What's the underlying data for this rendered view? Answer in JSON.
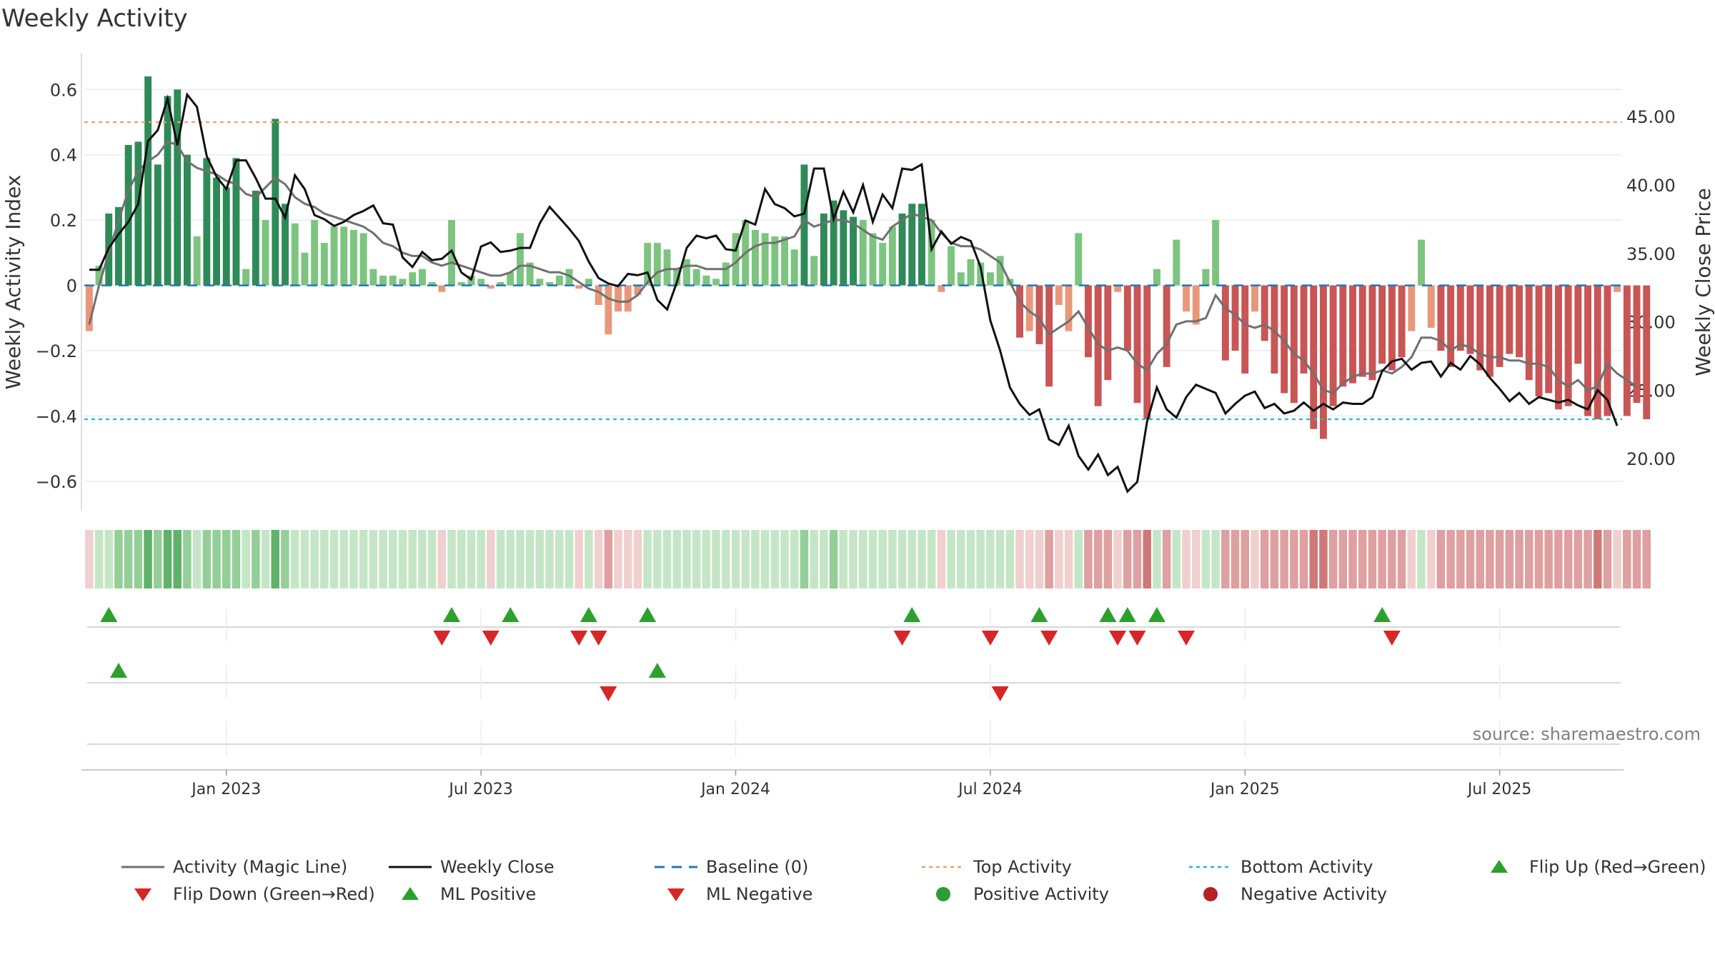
{
  "title": "Weekly Activity",
  "source_note": "source: sharemaestro.com",
  "colors": {
    "pos_dark": "#2e8b57",
    "pos_light": "#7cc47f",
    "neg_dark": "#c95555",
    "neg_light": "#e8977a",
    "magic_line": "#707070",
    "close_line": "#111111",
    "baseline": "#1f77b4",
    "top_line": "#f0a060",
    "bottom_line": "#17becf",
    "flip_up": "#2ca02c",
    "flip_down": "#d62728"
  },
  "chart_data": {
    "type": "bar+line",
    "title": "Weekly Activity",
    "ylabel_left": "Weekly Activity Index",
    "ylabel_right": "Weekly Close Price",
    "ylim_left": [
      -0.69,
      0.71
    ],
    "ylim_right": [
      16.2,
      49.6
    ],
    "left_ticks": [
      {
        "v": 0.6,
        "label": "0.6"
      },
      {
        "v": 0.4,
        "label": "0.4"
      },
      {
        "v": 0.2,
        "label": "0.2"
      },
      {
        "v": 0.0,
        "label": "0"
      },
      {
        "v": -0.2,
        "label": "−0.2"
      },
      {
        "v": -0.4,
        "label": "−0.4"
      },
      {
        "v": -0.6,
        "label": "−0.6"
      }
    ],
    "right_ticks": [
      {
        "v": 45,
        "label": "45.00"
      },
      {
        "v": 40,
        "label": "40.00"
      },
      {
        "v": 35,
        "label": "35.00"
      },
      {
        "v": 30,
        "label": "30.00"
      },
      {
        "v": 25,
        "label": "25.00"
      },
      {
        "v": 20,
        "label": "20.00"
      }
    ],
    "x_ticks": [
      {
        "week": 14,
        "label": "Jan 2023"
      },
      {
        "week": 40,
        "label": "Jul 2023"
      },
      {
        "week": 66,
        "label": "Jan 2024"
      },
      {
        "week": 92,
        "label": "Jul 2024"
      },
      {
        "week": 118,
        "label": "Jan 2025"
      },
      {
        "week": 144,
        "label": "Jul 2025"
      }
    ],
    "week_count": 157,
    "top_activity": 0.5,
    "bottom_activity": -0.41,
    "baseline": 0,
    "activity": [
      -0.14,
      0.06,
      0.22,
      0.24,
      0.43,
      0.44,
      0.64,
      0.37,
      0.58,
      0.6,
      0.4,
      0.15,
      0.39,
      0.33,
      0.3,
      0.39,
      0.05,
      0.29,
      0.2,
      0.51,
      0.25,
      0.19,
      0.1,
      0.2,
      0.13,
      0.18,
      0.18,
      0.17,
      0.16,
      0.05,
      0.03,
      0.03,
      0.02,
      0.04,
      0.05,
      0.01,
      -0.02,
      0.2,
      0.01,
      0.03,
      0.02,
      -0.01,
      0.01,
      0.04,
      0.16,
      0.07,
      0.02,
      0.01,
      0.03,
      0.05,
      -0.01,
      0.02,
      -0.06,
      -0.15,
      -0.08,
      -0.08,
      -0.03,
      0.13,
      0.13,
      0.11,
      0.05,
      0.08,
      0.05,
      0.03,
      0.02,
      0.07,
      0.16,
      0.2,
      0.17,
      0.16,
      0.15,
      0.15,
      0.11,
      0.37,
      0.09,
      0.22,
      0.26,
      0.23,
      0.21,
      0.2,
      0.16,
      0.13,
      0.18,
      0.22,
      0.25,
      0.25,
      0.2,
      -0.02,
      0.12,
      0.04,
      0.08,
      0.07,
      0.04,
      0.09,
      0.02,
      -0.16,
      -0.14,
      -0.18,
      -0.31,
      -0.06,
      -0.14,
      0.16,
      -0.22,
      -0.37,
      -0.29,
      -0.02,
      -0.2,
      -0.36,
      -0.41,
      0.05,
      -0.25,
      0.14,
      -0.08,
      -0.12,
      0.05,
      0.2,
      -0.23,
      -0.2,
      -0.27,
      -0.08,
      -0.17,
      -0.27,
      -0.33,
      -0.36,
      -0.27,
      -0.44,
      -0.47,
      -0.37,
      -0.31,
      -0.3,
      -0.28,
      -0.29,
      -0.24,
      -0.26,
      -0.22,
      -0.14,
      0.14,
      -0.13,
      -0.2,
      -0.25,
      -0.2,
      -0.21,
      -0.26,
      -0.28,
      -0.25,
      -0.21,
      -0.22,
      -0.29,
      -0.34,
      -0.33,
      -0.38,
      -0.37,
      -0.24,
      -0.4,
      -0.41,
      -0.4,
      -0.02,
      -0.4,
      -0.36,
      -0.41
    ],
    "magic_line": [
      -0.12,
      0.0,
      0.1,
      0.2,
      0.29,
      0.35,
      0.38,
      0.4,
      0.44,
      0.43,
      0.38,
      0.36,
      0.35,
      0.34,
      0.32,
      0.31,
      0.28,
      0.27,
      0.3,
      0.33,
      0.31,
      0.27,
      0.25,
      0.24,
      0.22,
      0.21,
      0.2,
      0.19,
      0.18,
      0.16,
      0.13,
      0.12,
      0.1,
      0.09,
      0.09,
      0.07,
      0.06,
      0.07,
      0.06,
      0.05,
      0.04,
      0.03,
      0.03,
      0.04,
      0.06,
      0.06,
      0.05,
      0.04,
      0.04,
      0.03,
      0.01,
      -0.01,
      -0.02,
      -0.04,
      -0.05,
      -0.05,
      -0.03,
      0.01,
      0.04,
      0.05,
      0.05,
      0.06,
      0.06,
      0.05,
      0.05,
      0.05,
      0.07,
      0.1,
      0.12,
      0.13,
      0.13,
      0.14,
      0.15,
      0.2,
      0.18,
      0.19,
      0.2,
      0.2,
      0.19,
      0.17,
      0.15,
      0.14,
      0.18,
      0.2,
      0.22,
      0.21,
      0.2,
      0.16,
      0.13,
      0.12,
      0.12,
      0.11,
      0.09,
      0.07,
      0.01,
      -0.05,
      -0.08,
      -0.1,
      -0.15,
      -0.13,
      -0.11,
      -0.08,
      -0.13,
      -0.18,
      -0.2,
      -0.19,
      -0.2,
      -0.24,
      -0.26,
      -0.21,
      -0.18,
      -0.12,
      -0.11,
      -0.11,
      -0.1,
      -0.03,
      -0.07,
      -0.09,
      -0.12,
      -0.13,
      -0.12,
      -0.14,
      -0.17,
      -0.21,
      -0.23,
      -0.27,
      -0.32,
      -0.33,
      -0.3,
      -0.28,
      -0.27,
      -0.27,
      -0.26,
      -0.27,
      -0.25,
      -0.22,
      -0.16,
      -0.16,
      -0.17,
      -0.2,
      -0.18,
      -0.19,
      -0.21,
      -0.22,
      -0.22,
      -0.23,
      -0.23,
      -0.24,
      -0.24,
      -0.25,
      -0.29,
      -0.31,
      -0.29,
      -0.32,
      -0.31,
      -0.24,
      -0.27,
      -0.29,
      -0.31
    ],
    "weekly_close": [
      33.8,
      33.8,
      35.4,
      36.4,
      37.3,
      38.6,
      43.2,
      44.0,
      46.3,
      42.9,
      46.6,
      45.7,
      42.1,
      40.6,
      39.7,
      41.8,
      41.8,
      40.5,
      39.0,
      39.0,
      37.6,
      40.7,
      39.7,
      37.8,
      37.5,
      37.0,
      37.3,
      37.8,
      38.1,
      38.5,
      37.2,
      37.1,
      34.7,
      34.0,
      35.1,
      34.5,
      34.6,
      35.2,
      33.6,
      33.1,
      35.5,
      35.8,
      35.1,
      35.2,
      35.4,
      35.4,
      37.2,
      38.4,
      37.6,
      36.8,
      35.9,
      34.4,
      33.2,
      32.8,
      32.6,
      33.5,
      33.4,
      33.6,
      31.6,
      30.9,
      32.9,
      35.4,
      36.3,
      36.1,
      36.3,
      35.3,
      35.2,
      37.4,
      37.1,
      39.7,
      38.6,
      38.3,
      37.7,
      37.9,
      41.2,
      41.2,
      37.5,
      39.5,
      38.0,
      40.0,
      37.3,
      39.3,
      38.3,
      41.2,
      41.1,
      41.5,
      35.3,
      36.6,
      35.7,
      36.2,
      35.9,
      34.0,
      30.1,
      27.9,
      25.2,
      24.0,
      23.2,
      23.6,
      21.4,
      21.0,
      22.4,
      20.2,
      19.2,
      20.3,
      18.8,
      19.4,
      17.6,
      18.3,
      22.7,
      25.2,
      23.6,
      23.0,
      24.5,
      25.4,
      25.1,
      24.8,
      23.3,
      24.0,
      24.6,
      24.9,
      23.7,
      24.0,
      23.3,
      23.5,
      24.1,
      23.5,
      24.0,
      23.6,
      24.1,
      24.0,
      24.0,
      24.5,
      26.4,
      27.1,
      27.3,
      26.5,
      27.0,
      27.1,
      26.0,
      27.0,
      26.5,
      27.5,
      26.9,
      25.9,
      25.1,
      24.2,
      24.8,
      24.0,
      24.5,
      24.3,
      24.1,
      24.3,
      23.9,
      23.6,
      25.0,
      24.3,
      22.4
    ],
    "strip_levels": [
      -1,
      1,
      1,
      2,
      2,
      2,
      3,
      2,
      3,
      3,
      2,
      1,
      2,
      2,
      2,
      2,
      1,
      2,
      1,
      3,
      2,
      1,
      1,
      1,
      1,
      1,
      1,
      1,
      1,
      1,
      1,
      1,
      1,
      1,
      1,
      1,
      -1,
      1,
      1,
      1,
      1,
      -1,
      1,
      1,
      1,
      1,
      1,
      1,
      1,
      1,
      -1,
      1,
      -1,
      -2,
      -1,
      -1,
      -1,
      1,
      1,
      1,
      1,
      1,
      1,
      1,
      1,
      1,
      1,
      1,
      1,
      1,
      1,
      1,
      1,
      2,
      1,
      1,
      2,
      1,
      1,
      1,
      1,
      1,
      1,
      1,
      1,
      1,
      1,
      -1,
      1,
      1,
      1,
      1,
      1,
      1,
      1,
      -1,
      -1,
      -1,
      -2,
      -1,
      -1,
      1,
      -2,
      -2,
      -2,
      -1,
      -2,
      -2,
      -3,
      1,
      -2,
      1,
      -1,
      -1,
      1,
      1,
      -2,
      -2,
      -2,
      -1,
      -2,
      -2,
      -2,
      -2,
      -2,
      -3,
      -3,
      -2,
      -2,
      -2,
      -2,
      -2,
      -2,
      -2,
      -2,
      -1,
      1,
      -1,
      -2,
      -2,
      -2,
      -2,
      -2,
      -2,
      -2,
      -2,
      -2,
      -2,
      -2,
      -2,
      -2,
      -2,
      -2,
      -2,
      -3,
      -2,
      -1,
      -2,
      -2,
      -2
    ],
    "flip_up_weeks": [
      2,
      37,
      43,
      51,
      57,
      84,
      97,
      104,
      106,
      109,
      132
    ],
    "flip_down_weeks": [
      36,
      41,
      50,
      52,
      83,
      92,
      98,
      105,
      107,
      112,
      133
    ],
    "ml_positive_weeks": [
      3,
      58
    ],
    "ml_negative_weeks": [
      53,
      93
    ],
    "markers_row3": [],
    "legend": [
      {
        "key": "magic",
        "label": "Activity (Magic Line)"
      },
      {
        "key": "close",
        "label": "Weekly Close"
      },
      {
        "key": "baseline",
        "label": "Baseline (0)"
      },
      {
        "key": "top",
        "label": "Top Activity"
      },
      {
        "key": "bottom",
        "label": "Bottom Activity"
      },
      {
        "key": "flipup",
        "label": "Flip Up (Red→Green)"
      },
      {
        "key": "flipdown",
        "label": "Flip Down (Green→Red)"
      },
      {
        "key": "mlpos",
        "label": "ML Positive"
      },
      {
        "key": "mlneg",
        "label": "ML Negative"
      },
      {
        "key": "posact",
        "label": "Positive Activity"
      },
      {
        "key": "negact",
        "label": "Negative Activity"
      }
    ]
  }
}
